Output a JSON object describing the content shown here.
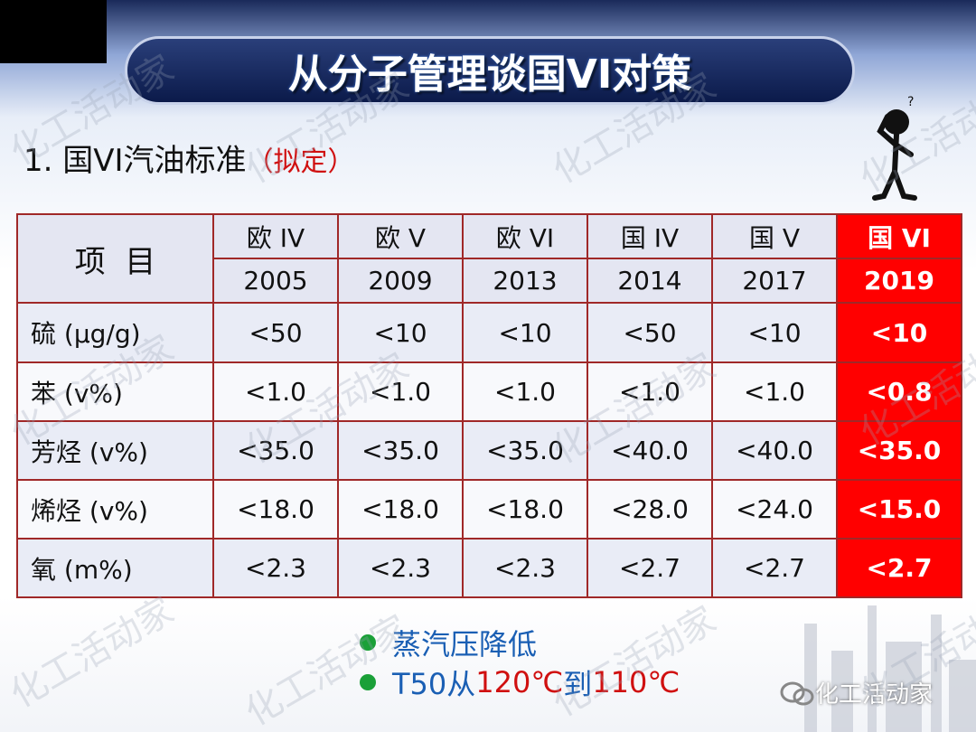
{
  "header": {
    "title": "从分子管理谈国VI对策",
    "subtitle": "1. 国VI汽油标准",
    "subtitle_note": "（拟定）"
  },
  "table": {
    "corner": "项  目",
    "columns": [
      {
        "name": "欧 IV",
        "year": 2005
      },
      {
        "name": "欧 V",
        "year": 2009
      },
      {
        "name": "欧 VI",
        "year": 2013
      },
      {
        "name": "国 IV",
        "year": 2014
      },
      {
        "name": "国 V",
        "year": 2017
      },
      {
        "name": "国 VI",
        "year": 2019
      }
    ],
    "rows": [
      {
        "item": "硫 (μg/g)",
        "values": [
          "<50",
          "<10",
          "<10",
          "<50",
          "<10",
          "<10"
        ]
      },
      {
        "item": "苯 (v%)",
        "values": [
          "<1.0",
          "<1.0",
          "<1.0",
          "<1.0",
          "<1.0",
          "<0.8"
        ]
      },
      {
        "item": "芳烃 (v%)",
        "values": [
          "<35.0",
          "<35.0",
          "<35.0",
          "<40.0",
          "<40.0",
          "<35.0"
        ]
      },
      {
        "item": "烯烃 (v%)",
        "values": [
          "<18.0",
          "<18.0",
          "<18.0",
          "<28.0",
          "<24.0",
          "<15.0"
        ]
      },
      {
        "item": "氧 (m%)",
        "values": [
          "<2.3",
          "<2.3",
          "<2.3",
          "<2.7",
          "<2.7",
          "<2.7"
        ]
      }
    ]
  },
  "bullets": [
    {
      "parts": [
        "蒸汽压降低"
      ]
    },
    {
      "parts": [
        "T50从",
        "120℃",
        "到",
        "110℃"
      ]
    }
  ],
  "watermark": "化工活动家"
}
